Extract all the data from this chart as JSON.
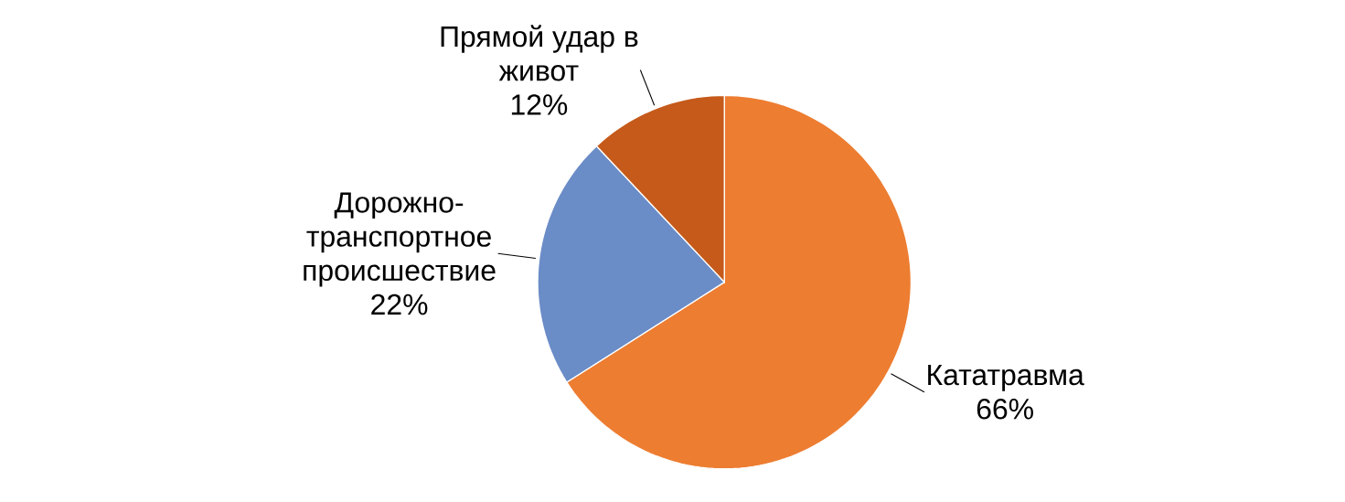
{
  "chart_data": {
    "type": "pie",
    "categories": [
      "Кататравма",
      "Дорожно-транспортное происшествие",
      "Прямой удар в живот"
    ],
    "values": [
      66,
      22,
      12
    ],
    "value_labels": [
      "66%",
      "22%",
      "12%"
    ],
    "colors": [
      "#ed7d31",
      "#6a8cc7",
      "#c55a1a"
    ]
  }
}
